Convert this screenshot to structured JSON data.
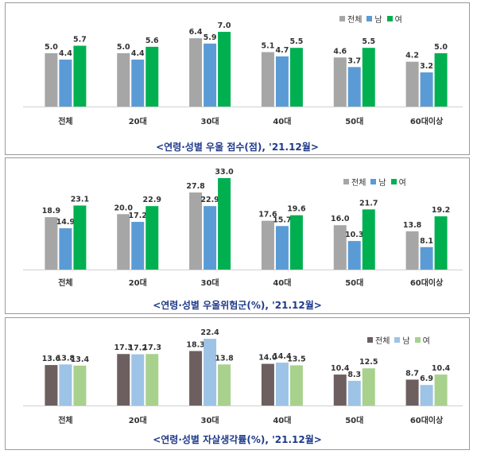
{
  "chart_data": [
    {
      "type": "bar",
      "title": "<연령·성별 우울 점수(점), '21.12월>",
      "categories": [
        "전체",
        "20대",
        "30대",
        "40대",
        "50대",
        "60대이상"
      ],
      "series": [
        {
          "name": "전체",
          "color": "#a6a6a6",
          "values": [
            5.0,
            5.0,
            6.4,
            5.1,
            4.6,
            4.2
          ]
        },
        {
          "name": "남",
          "color": "#5b9bd5",
          "values": [
            4.4,
            4.4,
            5.9,
            4.7,
            3.7,
            3.2
          ]
        },
        {
          "name": "여",
          "color": "#00b050",
          "values": [
            5.7,
            5.6,
            7.0,
            5.5,
            5.5,
            5.0
          ]
        }
      ],
      "ylim": [
        0,
        7.6
      ],
      "legend": "top-right"
    },
    {
      "type": "bar",
      "title": "<연령·성별 우울위험군(%), '21.12월>",
      "categories": [
        "전체",
        "20대",
        "30대",
        "40대",
        "50대",
        "60대이상"
      ],
      "series": [
        {
          "name": "전체",
          "color": "#a6a6a6",
          "values": [
            18.9,
            20.0,
            27.8,
            17.6,
            16.0,
            13.8
          ]
        },
        {
          "name": "남",
          "color": "#5b9bd5",
          "values": [
            14.9,
            17.2,
            22.9,
            15.7,
            10.3,
            8.1
          ]
        },
        {
          "name": "여",
          "color": "#00b050",
          "values": [
            23.1,
            22.9,
            33.0,
            19.6,
            21.7,
            19.2
          ]
        }
      ],
      "ylim": [
        0,
        35
      ],
      "legend": "top-right"
    },
    {
      "type": "bar",
      "title": "<연령·성별 자살생각률(%), '21.12월>",
      "categories": [
        "전체",
        "20대",
        "30대",
        "40대",
        "50대",
        "60대이상"
      ],
      "series": [
        {
          "name": "전체",
          "color": "#6d5f5f",
          "values": [
            13.6,
            17.3,
            18.3,
            14.0,
            10.4,
            8.7
          ]
        },
        {
          "name": "남",
          "color": "#9dc3e6",
          "values": [
            13.8,
            17.2,
            22.4,
            14.4,
            8.3,
            6.9
          ]
        },
        {
          "name": "여",
          "color": "#a9d18e",
          "values": [
            13.4,
            17.3,
            13.8,
            13.5,
            12.5,
            10.4
          ]
        }
      ],
      "ylim": [
        0,
        23.5
      ],
      "legend": "top-right"
    }
  ]
}
